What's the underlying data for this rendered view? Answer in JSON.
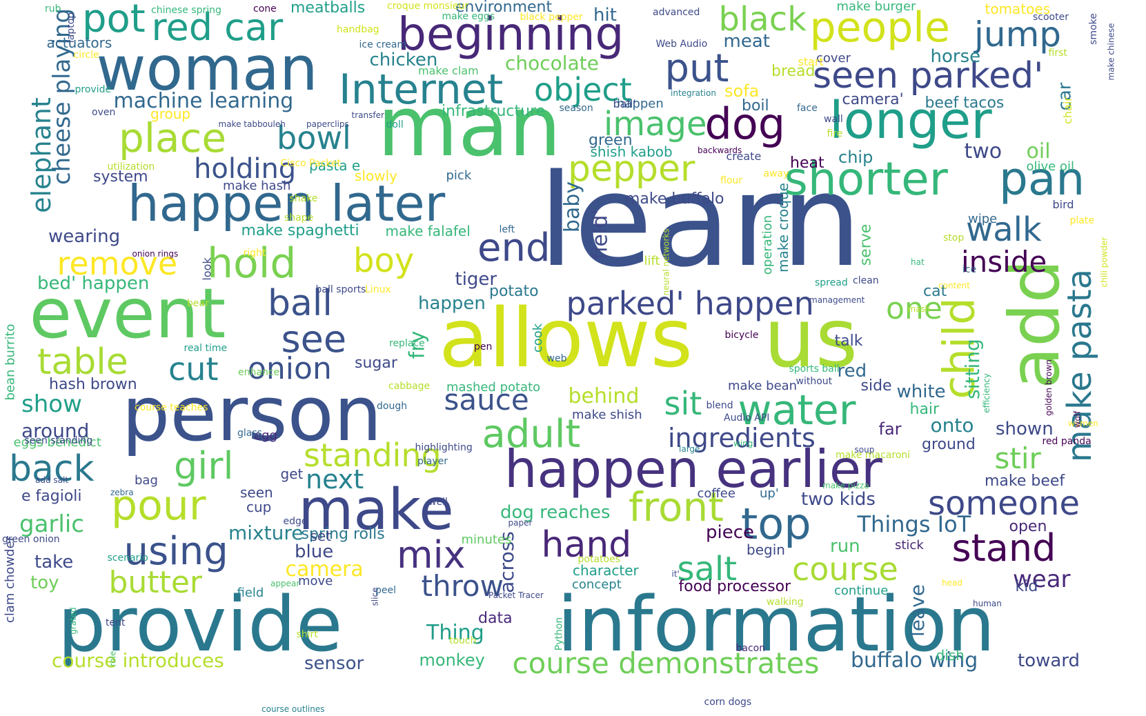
{
  "words": [
    {
      "text": "learn",
      "color": "#3b528b"
    },
    {
      "text": "provide",
      "color": "#2a788e"
    },
    {
      "text": "information",
      "color": "#2a788e"
    },
    {
      "text": "allows",
      "color": "#d2e21b"
    },
    {
      "text": "us",
      "color": "#a8db34"
    },
    {
      "text": "man",
      "color": "#4ac16d"
    },
    {
      "text": "person",
      "color": "#3b528b"
    },
    {
      "text": "event",
      "color": "#5ec962"
    },
    {
      "text": "woman",
      "color": "#31688e"
    },
    {
      "text": "happen earlier",
      "color": "#46327e"
    },
    {
      "text": "happen later",
      "color": "#31688e"
    },
    {
      "text": "make",
      "color": "#3e4989"
    },
    {
      "text": "add",
      "color": "#7ad151"
    },
    {
      "text": "beginning",
      "color": "#482878"
    },
    {
      "text": "longer",
      "color": "#1f9e89"
    },
    {
      "text": "shorter",
      "color": "#35b779"
    },
    {
      "text": "pan",
      "color": "#2a788e"
    },
    {
      "text": "people",
      "color": "#d2e21b"
    },
    {
      "text": "Internet",
      "color": "#26828e"
    },
    {
      "text": "red car",
      "color": "#1f9e89"
    },
    {
      "text": "pot",
      "color": "#1f9e89"
    },
    {
      "text": "black",
      "color": "#7ad151"
    },
    {
      "text": "jump",
      "color": "#31688e"
    },
    {
      "text": "seen parked'",
      "color": "#3e4989"
    },
    {
      "text": "object",
      "color": "#1f9e89"
    },
    {
      "text": "put",
      "color": "#3b528b"
    },
    {
      "text": "dog",
      "color": "#440154"
    },
    {
      "text": "image",
      "color": "#4ac16d"
    },
    {
      "text": "place",
      "color": "#a8db34"
    },
    {
      "text": "bowl",
      "color": "#26828e"
    },
    {
      "text": "holding",
      "color": "#3b528b"
    },
    {
      "text": "pepper",
      "color": "#b5de2b"
    },
    {
      "text": "end",
      "color": "#3e4989"
    },
    {
      "text": "hold",
      "color": "#7ad151"
    },
    {
      "text": "remove",
      "color": "#fde725"
    },
    {
      "text": "boy",
      "color": "#d2e21b"
    },
    {
      "text": "ball",
      "color": "#3b528b"
    },
    {
      "text": "see",
      "color": "#3b528b"
    },
    {
      "text": "parked' happen",
      "color": "#3e4989"
    },
    {
      "text": "walk",
      "color": "#31688e"
    },
    {
      "text": "inside",
      "color": "#440154"
    },
    {
      "text": "child",
      "color": "#b5de2b"
    },
    {
      "text": "make pasta",
      "color": "#2a788e"
    },
    {
      "text": "one",
      "color": "#7ad151"
    },
    {
      "text": "table",
      "color": "#a8db34"
    },
    {
      "text": "cut",
      "color": "#26828e"
    },
    {
      "text": "onion",
      "color": "#3b528b"
    },
    {
      "text": "sauce",
      "color": "#3b528b"
    },
    {
      "text": "sit",
      "color": "#35b779"
    },
    {
      "text": "water",
      "color": "#35b779"
    },
    {
      "text": "adult",
      "color": "#5ec962"
    },
    {
      "text": "ingredients",
      "color": "#3e4989"
    },
    {
      "text": "stir",
      "color": "#6ece58"
    },
    {
      "text": "back",
      "color": "#2a788e"
    },
    {
      "text": "girl",
      "color": "#5ec962"
    },
    {
      "text": "standing",
      "color": "#b5de2b"
    },
    {
      "text": "next",
      "color": "#26828e"
    },
    {
      "text": "pour",
      "color": "#b5de2b"
    },
    {
      "text": "someone",
      "color": "#3e4989"
    },
    {
      "text": "front",
      "color": "#a8db34"
    },
    {
      "text": "top",
      "color": "#31688e"
    },
    {
      "text": "hand",
      "color": "#482878"
    },
    {
      "text": "using",
      "color": "#3b528b"
    },
    {
      "text": "mix",
      "color": "#46327e"
    },
    {
      "text": "stand",
      "color": "#440154"
    },
    {
      "text": "salt",
      "color": "#35b779"
    },
    {
      "text": "course",
      "color": "#a8db34"
    },
    {
      "text": "butter",
      "color": "#a8db34"
    },
    {
      "text": "throw",
      "color": "#3b528b"
    },
    {
      "text": "wear",
      "color": "#482878"
    },
    {
      "text": "course demonstrates",
      "color": "#6ece58"
    },
    {
      "text": "buffalo wing",
      "color": "#31688e"
    },
    {
      "text": "toward",
      "color": "#3e4989"
    },
    {
      "text": "course introduces",
      "color": "#b5de2b"
    },
    {
      "text": "sensor",
      "color": "#3b528b"
    },
    {
      "text": "monkey",
      "color": "#35b779"
    },
    {
      "text": "elephant",
      "color": "#26828e"
    },
    {
      "text": "cheese playing",
      "color": "#31688e"
    },
    {
      "text": "machine learning",
      "color": "#31688e"
    },
    {
      "text": "chocolate",
      "color": "#6ece58"
    },
    {
      "text": "chicken",
      "color": "#26828e"
    },
    {
      "text": "meatballs",
      "color": "#1f9e89"
    },
    {
      "text": "environment",
      "color": "#31688e"
    },
    {
      "text": "hit",
      "color": "#31688e"
    },
    {
      "text": "meat",
      "color": "#31688e"
    },
    {
      "text": "horse",
      "color": "#26828e"
    },
    {
      "text": "beef tacos",
      "color": "#2a788e"
    },
    {
      "text": "camera'",
      "color": "#3e4989"
    },
    {
      "text": "car",
      "color": "#2a788e"
    },
    {
      "text": "oil",
      "color": "#6ece58"
    },
    {
      "text": "two",
      "color": "#3e4989"
    },
    {
      "text": "chip",
      "color": "#26828e"
    },
    {
      "text": "heat",
      "color": "#440154"
    },
    {
      "text": "infrastructure",
      "color": "#35b779"
    },
    {
      "text": "sofa",
      "color": "#fde725"
    },
    {
      "text": "bread",
      "color": "#b5de2b"
    },
    {
      "text": "boil",
      "color": "#31688e"
    },
    {
      "text": "group",
      "color": "#fde725"
    },
    {
      "text": "system",
      "color": "#3e4989"
    },
    {
      "text": "pasta e",
      "color": "#1f9e89"
    },
    {
      "text": "slowly",
      "color": "#fde725"
    },
    {
      "text": "make hash",
      "color": "#3e4989"
    },
    {
      "text": "pick",
      "color": "#31688e"
    },
    {
      "text": "green",
      "color": "#31688e"
    },
    {
      "text": "shish kabob",
      "color": "#1f9e89"
    },
    {
      "text": "make buffalo",
      "color": "#3e4989"
    },
    {
      "text": "make spaghetti",
      "color": "#1f9e89"
    },
    {
      "text": "make falafel",
      "color": "#35b779"
    },
    {
      "text": "wearing",
      "color": "#3e4989"
    },
    {
      "text": "bed' happen",
      "color": "#35b779"
    },
    {
      "text": "tiger",
      "color": "#3e4989"
    },
    {
      "text": "potato",
      "color": "#2a788e"
    },
    {
      "text": "happen",
      "color": "#26828e"
    },
    {
      "text": "baby",
      "color": "#31688e"
    },
    {
      "text": "field'",
      "color": "#3e4989"
    },
    {
      "text": "talk",
      "color": "#3e4989"
    },
    {
      "text": "red",
      "color": "#31688e"
    },
    {
      "text": "side",
      "color": "#3e4989"
    },
    {
      "text": "white",
      "color": "#31688e"
    },
    {
      "text": "sitting",
      "color": "#35b779"
    },
    {
      "text": "cat",
      "color": "#2a788e"
    },
    {
      "text": "hash brown",
      "color": "#3e4989"
    },
    {
      "text": "show",
      "color": "#1f9e89"
    },
    {
      "text": "around",
      "color": "#3e4989"
    },
    {
      "text": "eggs benedict",
      "color": "#4ac16d"
    },
    {
      "text": "e fagioli",
      "color": "#3e4989"
    },
    {
      "text": "garlic",
      "color": "#4ac16d"
    },
    {
      "text": "sugar",
      "color": "#3e4989"
    },
    {
      "text": "fry",
      "color": "#35b779"
    },
    {
      "text": "behind",
      "color": "#b5de2b"
    },
    {
      "text": "make shish",
      "color": "#3e4989"
    },
    {
      "text": "mashed potato",
      "color": "#35b779"
    },
    {
      "text": "make bean",
      "color": "#3e4989"
    },
    {
      "text": "onto",
      "color": "#26828e"
    },
    {
      "text": "shown",
      "color": "#3e4989"
    },
    {
      "text": "far",
      "color": "#482878"
    },
    {
      "text": "hair",
      "color": "#35b779"
    },
    {
      "text": "ground",
      "color": "#3e4989"
    },
    {
      "text": "make beef",
      "color": "#3e4989"
    },
    {
      "text": "two kids",
      "color": "#3e4989"
    },
    {
      "text": "dog reaches",
      "color": "#35b779"
    },
    {
      "text": "mixture",
      "color": "#26828e"
    },
    {
      "text": "spring rolls",
      "color": "#2a788e"
    },
    {
      "text": "Things IoT",
      "color": "#31688e"
    },
    {
      "text": "open",
      "color": "#482878"
    },
    {
      "text": "piece",
      "color": "#440154"
    },
    {
      "text": "blue",
      "color": "#3e4989"
    },
    {
      "text": "camera",
      "color": "#fde725"
    },
    {
      "text": "run",
      "color": "#4ac16d"
    },
    {
      "text": "begin",
      "color": "#3e4989"
    },
    {
      "text": "stick",
      "color": "#482878"
    },
    {
      "text": "take",
      "color": "#3e4989"
    },
    {
      "text": "toy",
      "color": "#6ece58"
    },
    {
      "text": "character",
      "color": "#1f9e89"
    },
    {
      "text": "concept",
      "color": "#26828e"
    },
    {
      "text": "food processor",
      "color": "#440154"
    },
    {
      "text": "kid",
      "color": "#3e4989"
    },
    {
      "text": "continue",
      "color": "#1f9e89"
    },
    {
      "text": "leave",
      "color": "#31688e"
    },
    {
      "text": "across",
      "color": "#3e4989"
    },
    {
      "text": "Thing",
      "color": "#1f9e89"
    },
    {
      "text": "data",
      "color": "#482878"
    },
    {
      "text": "set",
      "color": "#3e4989"
    },
    {
      "text": "minutes",
      "color": "#5ec962"
    },
    {
      "text": "seen",
      "color": "#3e4989"
    },
    {
      "text": "cup",
      "color": "#3e4989"
    },
    {
      "text": "get",
      "color": "#3e4989"
    },
    {
      "text": "egg",
      "color": "#482878"
    },
    {
      "text": "bag",
      "color": "#3e4989"
    },
    {
      "text": "coffee",
      "color": "#3e4989"
    },
    {
      "text": "up'",
      "color": "#31688e"
    },
    {
      "text": "clam chowder",
      "color": "#3e4989"
    },
    {
      "text": "bean burrito",
      "color": "#35b779"
    },
    {
      "text": "field",
      "color": "#26828e"
    },
    {
      "text": "move",
      "color": "#3e4989"
    },
    {
      "text": "peel",
      "color": "#31688e"
    },
    {
      "text": "tent",
      "color": "#3e4989"
    },
    {
      "text": "dish",
      "color": "#35b779"
    },
    {
      "text": "bacon",
      "color": "#482878"
    },
    {
      "text": "cook",
      "color": "#1f9e89"
    },
    {
      "text": "serve",
      "color": "#4ac16d"
    },
    {
      "text": "make croque",
      "color": "#26828e"
    },
    {
      "text": "operation",
      "color": "#35b779"
    },
    {
      "text": "lift",
      "color": "#b5de2b"
    },
    {
      "text": "wipe",
      "color": "#31688e"
    },
    {
      "text": "olive oil",
      "color": "#35b779"
    },
    {
      "text": "bird",
      "color": "#3e4989"
    },
    {
      "text": "create",
      "color": "#3e4989"
    },
    {
      "text": "chair",
      "color": "#d2e21b"
    },
    {
      "text": "cover",
      "color": "#3e4989"
    },
    {
      "text": "happen ",
      "color": "#31688e"
    },
    {
      "text": "ball'",
      "color": "#3e4989"
    },
    {
      "text": "make clam",
      "color": "#4ac16d"
    },
    {
      "text": "make burger",
      "color": "#35b779"
    },
    {
      "text": "tomatoes",
      "color": "#fde725"
    },
    {
      "text": "actuators",
      "color": "#31688e"
    },
    {
      "text": "scooter",
      "color": "#3e4989"
    },
    {
      "text": "smoke",
      "color": "#3e4989"
    },
    {
      "text": "make chinese",
      "color": "#3e4989"
    },
    {
      "text": "first",
      "color": "#b5de2b"
    },
    {
      "text": "start",
      "color": "#fde725"
    },
    {
      "text": "rub",
      "color": "#35b779"
    },
    {
      "text": "laptop",
      "color": "#3e4989"
    },
    {
      "text": "chinese spring",
      "color": "#35b779"
    },
    {
      "text": "cone",
      "color": "#440154"
    },
    {
      "text": "croque monsieur",
      "color": "#d2e21b"
    },
    {
      "text": "make eggs",
      "color": "#35b779"
    },
    {
      "text": "black pepper",
      "color": "#fde725"
    },
    {
      "text": "advanced",
      "color": "#3e4989"
    },
    {
      "text": "handbag",
      "color": "#d2e21b"
    },
    {
      "text": "ice cream",
      "color": "#31688e"
    },
    {
      "text": "Web Audio",
      "color": "#3e4989"
    },
    {
      "text": "circle",
      "color": "#fde725"
    },
    {
      "text": "provide",
      "color": "#1f9e89"
    },
    {
      "text": "oven",
      "color": "#3e4989"
    },
    {
      "text": "transfer",
      "color": "#3e4989"
    },
    {
      "text": "make tabbouleh",
      "color": "#3e4989"
    },
    {
      "text": "paperclips",
      "color": "#3e4989"
    },
    {
      "text": "doll",
      "color": "#1f9e89"
    },
    {
      "text": "season",
      "color": "#31688e"
    },
    {
      "text": "integration",
      "color": "#26828e"
    },
    {
      "text": "face",
      "color": "#31688e"
    },
    {
      "text": "wall",
      "color": "#3e4989"
    },
    {
      "text": "fire",
      "color": "#b5de2b"
    },
    {
      "text": "backwards",
      "color": "#440154"
    },
    {
      "text": "utilization",
      "color": "#b5de2b"
    },
    {
      "text": "Cisco Packet",
      "color": "#fde725"
    },
    {
      "text": "away",
      "color": "#fde725"
    },
    {
      "text": "flour",
      "color": "#fde725"
    },
    {
      "text": "shake",
      "color": "#b5de2b"
    },
    {
      "text": "shape",
      "color": "#b5de2b"
    },
    {
      "text": "left",
      "color": "#31688e"
    },
    {
      "text": "plate",
      "color": "#fde725"
    },
    {
      "text": "stop",
      "color": "#b5de2b"
    },
    {
      "text": "right",
      "color": "#fde725"
    },
    {
      "text": "onion rings",
      "color": "#440154"
    },
    {
      "text": "look",
      "color": "#3e4989"
    },
    {
      "text": "neural networks",
      "color": "#b5de2b"
    },
    {
      "text": "hat",
      "color": "#35b779"
    },
    {
      "text": "ice",
      "color": "#31688e"
    },
    {
      "text": "chili powder",
      "color": "#d2e21b"
    },
    {
      "text": "spread",
      "color": "#1f9e89"
    },
    {
      "text": "clean",
      "color": "#3e4989"
    },
    {
      "text": "content",
      "color": "#fde725"
    },
    {
      "text": "management",
      "color": "#3e4989"
    },
    {
      "text": "ball sports",
      "color": "#3e4989"
    },
    {
      "text": "Linux",
      "color": "#fde725"
    },
    {
      "text": "bear",
      "color": "#b5de2b"
    },
    {
      "text": "mash",
      "color": "#b5de2b"
    },
    {
      "text": "bicycle",
      "color": "#440154"
    },
    {
      "text": "replace",
      "color": "#35b779"
    },
    {
      "text": "pen",
      "color": "#440154"
    },
    {
      "text": "web",
      "color": "#31688e"
    },
    {
      "text": "real time",
      "color": "#1f9e89"
    },
    {
      "text": "enhance",
      "color": "#6ece58"
    },
    {
      "text": "sports ball",
      "color": "#35b779"
    },
    {
      "text": "without",
      "color": "#3e4989"
    },
    {
      "text": "cabbage",
      "color": "#b5de2b"
    },
    {
      "text": "efficiency",
      "color": "#35b779"
    },
    {
      "text": "golden brown",
      "color": "#440154"
    },
    {
      "text": "course teaches",
      "color": "#fde725"
    },
    {
      "text": "dough",
      "color": "#31688e"
    },
    {
      "text": "blend",
      "color": "#3e4989"
    },
    {
      "text": "Audio API",
      "color": "#3e4989"
    },
    {
      "text": "women",
      "color": "#fde725"
    },
    {
      "text": "wolf",
      "color": "#440154"
    },
    {
      "text": "glass",
      "color": "#31688e"
    },
    {
      "text": "seen standing",
      "color": "#3e4989"
    },
    {
      "text": "large",
      "color": "#26828e"
    },
    {
      "text": "wing",
      "color": "#35b779"
    },
    {
      "text": "red panda",
      "color": "#440154"
    },
    {
      "text": "highlighting",
      "color": "#3e4989"
    },
    {
      "text": "make macaroni",
      "color": "#b5de2b"
    },
    {
      "text": "player",
      "color": "#31688e"
    },
    {
      "text": "soup",
      "color": "#3e4989"
    },
    {
      "text": "add salt",
      "color": "#3e4989"
    },
    {
      "text": "zebra",
      "color": "#31688e"
    },
    {
      "text": "well",
      "color": "#3e4989"
    },
    {
      "text": "make pizza",
      "color": "#4ac16d"
    },
    {
      "text": "green onion",
      "color": "#3e4989"
    },
    {
      "text": "edge",
      "color": "#3e4989"
    },
    {
      "text": "paper",
      "color": "#3e4989"
    },
    {
      "text": "scenario",
      "color": "#1f9e89"
    },
    {
      "text": "potatoes",
      "color": "#b5de2b"
    },
    {
      "text": "it'",
      "color": "#3e4989"
    },
    {
      "text": "appear",
      "color": "#4ac16d"
    },
    {
      "text": "slice",
      "color": "#3e4989"
    },
    {
      "text": "Packet Tracer",
      "color": "#3e4989"
    },
    {
      "text": "head",
      "color": "#fde725"
    },
    {
      "text": "human",
      "color": "#3e4989"
    },
    {
      "text": "walking",
      "color": "#b5de2b"
    },
    {
      "text": "shirt",
      "color": "#b5de2b"
    },
    {
      "text": "grated",
      "color": "#35b779"
    },
    {
      "text": "touch",
      "color": "#b5de2b"
    },
    {
      "text": "Python",
      "color": "#35b779"
    },
    {
      "text": "role",
      "color": "#4ac16d"
    },
    {
      "text": "course outlines",
      "color": "#26828e"
    },
    {
      "text": "corn dogs",
      "color": "#3e4989"
    },
    {
      "text": "ignore",
      "color": "#fde725"
    },
    {
      "text": "new",
      "color": "#35b779"
    },
    {
      "text": "small",
      "color": "#3e4989"
    },
    {
      "text": "technology",
      "color": "#b5de2b"
    }
  ]
}
